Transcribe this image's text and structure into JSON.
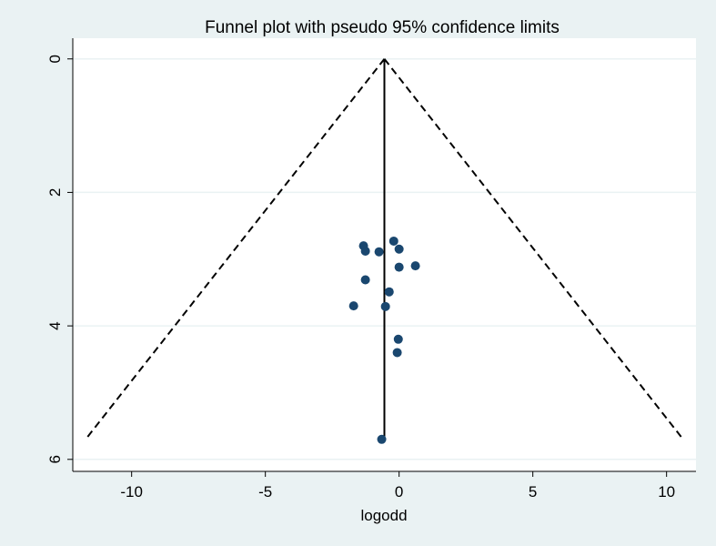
{
  "chart_data": {
    "type": "scatter",
    "title": "Funnel plot with pseudo 95% confidence limits",
    "x_label": "logodd",
    "x": [
      -0.2,
      -1.33,
      -1.26,
      -0.75,
      0.0,
      0.0,
      0.61,
      -1.26,
      -0.37,
      -1.7,
      -0.51,
      -0.03,
      -0.07,
      -0.65
    ],
    "values": [
      2.73,
      2.8,
      2.88,
      2.89,
      2.85,
      3.12,
      3.1,
      3.31,
      3.49,
      3.7,
      3.71,
      4.2,
      4.4,
      5.7
    ],
    "color": "#1a476f",
    "lines": [
      {
        "x": [
          -0.55,
          -0.55
        ],
        "y": [
          0,
          5.7
        ],
        "style": "solid"
      },
      {
        "x": [
          -0.55,
          -11.72
        ],
        "y": [
          0,
          5.7
        ],
        "style": "dashed"
      },
      {
        "x": [
          -0.55,
          10.62
        ],
        "y": [
          0,
          5.7
        ],
        "style": "dashed"
      }
    ],
    "xlim": [
      -12.2,
      11.1
    ],
    "xticks": [
      -10,
      -5,
      0,
      5,
      10
    ],
    "ylim": [
      -0.31,
      6.18
    ],
    "yticks": [
      0,
      2,
      4,
      6
    ],
    "y_reversed": true,
    "grid": true
  }
}
